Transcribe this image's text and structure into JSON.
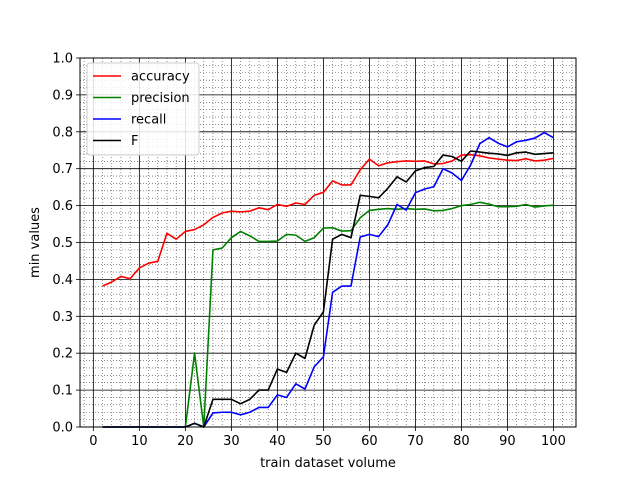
{
  "chart_data": {
    "type": "line",
    "xlabel": "train dataset volume",
    "ylabel": "min values",
    "xlim": [
      -2.9,
      104.9
    ],
    "ylim": [
      0.0,
      1.0
    ],
    "xticks": [
      0,
      10,
      20,
      30,
      40,
      50,
      60,
      70,
      80,
      90,
      100
    ],
    "yticks": [
      0.0,
      0.1,
      0.2,
      0.3,
      0.4,
      0.5,
      0.6,
      0.7,
      0.8,
      0.9,
      1.0
    ],
    "ytick_labels": [
      "0.0",
      "0.1",
      "0.2",
      "0.3",
      "0.4",
      "0.5",
      "0.6",
      "0.7",
      "0.8",
      "0.9",
      "1.0"
    ],
    "grid": {
      "major": true,
      "minor": true,
      "minor_x_step": 2,
      "minor_y_step": 0.02
    },
    "legend_position": "top-left",
    "x": [
      2,
      4,
      6,
      8,
      10,
      12,
      14,
      16,
      18,
      20,
      22,
      24,
      26,
      28,
      30,
      32,
      34,
      36,
      38,
      40,
      42,
      44,
      46,
      48,
      50,
      52,
      54,
      56,
      58,
      60,
      62,
      64,
      66,
      68,
      70,
      72,
      74,
      76,
      78,
      80,
      82,
      84,
      86,
      88,
      90,
      92,
      94,
      96,
      98,
      100
    ],
    "series": [
      {
        "name": "accuracy",
        "color": "#ff0000",
        "values": [
          0.382,
          0.393,
          0.408,
          0.402,
          0.431,
          0.444,
          0.449,
          0.525,
          0.509,
          0.53,
          0.535,
          0.548,
          0.568,
          0.58,
          0.585,
          0.583,
          0.585,
          0.594,
          0.589,
          0.603,
          0.598,
          0.607,
          0.603,
          0.628,
          0.636,
          0.667,
          0.656,
          0.656,
          0.697,
          0.726,
          0.708,
          0.716,
          0.719,
          0.721,
          0.72,
          0.721,
          0.713,
          0.714,
          0.721,
          0.737,
          0.738,
          0.735,
          0.729,
          0.726,
          0.723,
          0.722,
          0.727,
          0.721,
          0.723,
          0.728
        ]
      },
      {
        "name": "precision",
        "color": "#008000",
        "values": [
          0,
          0,
          0,
          0,
          0,
          0,
          0,
          0,
          0,
          0,
          0.2,
          0,
          0.48,
          0.485,
          0.513,
          0.53,
          0.518,
          0.503,
          0.503,
          0.504,
          0.522,
          0.52,
          0.503,
          0.513,
          0.539,
          0.54,
          0.531,
          0.532,
          0.567,
          0.587,
          0.59,
          0.592,
          0.59,
          0.592,
          0.59,
          0.591,
          0.586,
          0.587,
          0.592,
          0.6,
          0.603,
          0.609,
          0.604,
          0.597,
          0.597,
          0.598,
          0.603,
          0.596,
          0.599,
          0.601
        ]
      },
      {
        "name": "recall",
        "color": "#0000ff",
        "values": [
          0,
          0,
          0,
          0,
          0,
          0,
          0,
          0,
          0,
          0,
          0.01,
          0,
          0.038,
          0.04,
          0.04,
          0.033,
          0.04,
          0.053,
          0.053,
          0.087,
          0.08,
          0.117,
          0.103,
          0.163,
          0.19,
          0.365,
          0.382,
          0.382,
          0.515,
          0.522,
          0.516,
          0.548,
          0.603,
          0.588,
          0.635,
          0.645,
          0.651,
          0.7,
          0.688,
          0.668,
          0.71,
          0.768,
          0.784,
          0.769,
          0.759,
          0.773,
          0.777,
          0.783,
          0.798,
          0.784
        ]
      },
      {
        "name": "F",
        "color": "#000000",
        "values": [
          0,
          0,
          0,
          0,
          0,
          0,
          0,
          0,
          0,
          0,
          0.01,
          0,
          0.075,
          0.075,
          0.075,
          0.063,
          0.075,
          0.1,
          0.1,
          0.157,
          0.148,
          0.2,
          0.186,
          0.276,
          0.312,
          0.509,
          0.522,
          0.513,
          0.628,
          0.625,
          0.621,
          0.647,
          0.678,
          0.664,
          0.694,
          0.703,
          0.706,
          0.737,
          0.733,
          0.72,
          0.748,
          0.745,
          0.742,
          0.74,
          0.736,
          0.743,
          0.745,
          0.739,
          0.741,
          0.743
        ]
      }
    ]
  }
}
